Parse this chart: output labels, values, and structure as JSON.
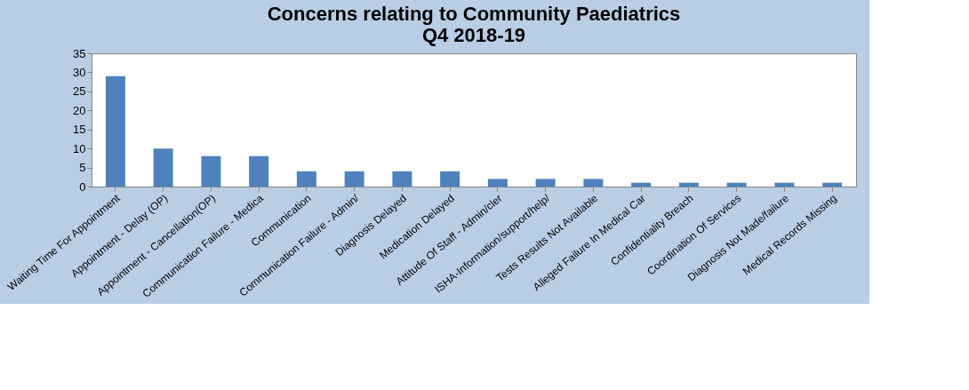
{
  "chart_data": {
    "type": "bar",
    "title": [
      "Concerns relating to Community Paediatrics",
      "Q4 2018-19"
    ],
    "categories": [
      "Waiting Time For Appointment",
      "Appointment - Delay (OP)",
      "Appointment - Cancellation(OP)",
      "Communication Failure - Medica",
      "Communication",
      "Communication Failure - Admin/",
      "Diagnosis Delayed",
      "Medication Delayed",
      "Attitude Of Staff - Admin/cler",
      "ISHA-Information/support/help/",
      "Tests Results Not Available",
      "Alleged Failure In Medical Car",
      "Confidentiality Breach",
      "Coordination Of Services",
      "Diagnosis Not Made/failure",
      "Medical Records Missing"
    ],
    "values": [
      29,
      10,
      8,
      8,
      4,
      4,
      4,
      4,
      2,
      2,
      2,
      1,
      1,
      1,
      1,
      1
    ],
    "color": "#4f81bd",
    "ylim": [
      0,
      35
    ],
    "yticks": [
      0,
      5,
      10,
      15,
      20,
      25,
      30,
      35
    ],
    "grid": false
  }
}
